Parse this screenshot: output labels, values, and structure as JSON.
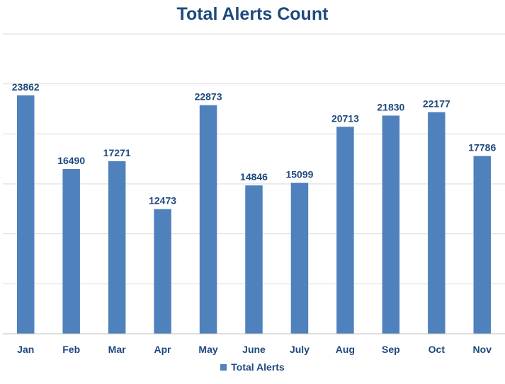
{
  "chart_data": {
    "type": "bar",
    "title": "Total Alerts Count",
    "xlabel": "",
    "ylabel": "",
    "categories": [
      "Jan",
      "Feb",
      "Mar",
      "Apr",
      "May",
      "June",
      "July",
      "Aug",
      "Sep",
      "Oct",
      "Nov"
    ],
    "series": [
      {
        "name": "Total Alerts",
        "values": [
          23862,
          16490,
          17271,
          12473,
          22873,
          14846,
          15099,
          20713,
          21830,
          22177,
          17786
        ],
        "color": "#4F81BD"
      }
    ],
    "ylim": [
      0,
      30000
    ],
    "grid": true,
    "legend_position": "bottom",
    "data_labels": true
  }
}
